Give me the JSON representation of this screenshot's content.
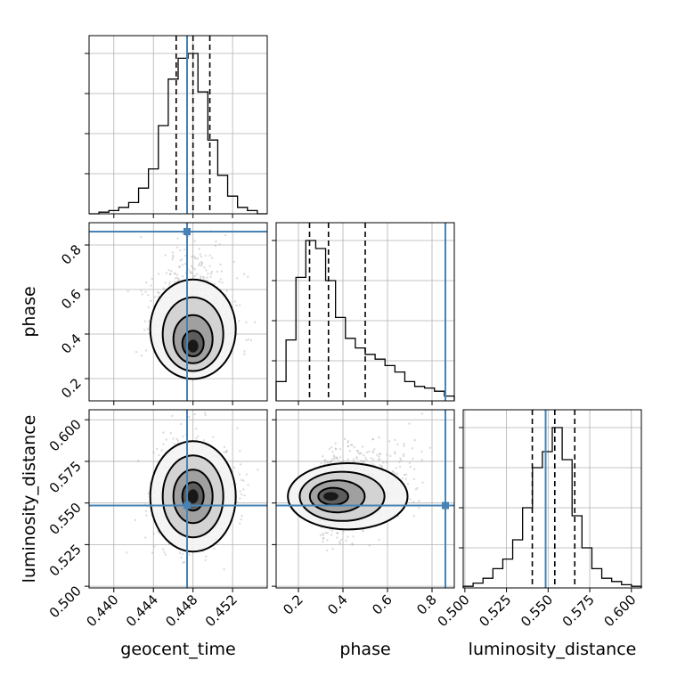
{
  "chart_data": {
    "type": "corner",
    "parameters": [
      "geocent_time",
      "phase",
      "luminosity_distance"
    ],
    "truths": {
      "geocent_time": 0.4474,
      "phase": 0.86,
      "luminosity_distance": 0.5485
    },
    "quantiles": {
      "geocent_time": [
        0.4463,
        0.448,
        0.4497
      ],
      "phase": [
        0.25,
        0.335,
        0.5
      ],
      "luminosity_distance": [
        0.5405,
        0.554,
        0.566
      ]
    },
    "ranges": {
      "geocent_time": [
        0.4375,
        0.4555
      ],
      "phase": [
        0.1,
        0.9
      ],
      "luminosity_distance": [
        0.499,
        0.606
      ]
    },
    "ticks": {
      "geocent_time": [
        "0.440",
        "0.444",
        "0.448",
        "0.452"
      ],
      "phase": [
        "0.2",
        "0.4",
        "0.6",
        "0.8"
      ],
      "luminosity_distance": [
        "0.500",
        "0.525",
        "0.550",
        "0.575",
        "0.600"
      ]
    },
    "histograms": {
      "geocent_time": [
        0,
        0.01,
        0.02,
        0.04,
        0.07,
        0.16,
        0.28,
        0.55,
        0.84,
        0.97,
        1.0,
        0.76,
        0.46,
        0.24,
        0.11,
        0.04,
        0.02,
        0.0
      ],
      "phase": [
        0.12,
        0.38,
        0.77,
        1.0,
        0.95,
        0.75,
        0.52,
        0.39,
        0.33,
        0.29,
        0.26,
        0.22,
        0.18,
        0.12,
        0.09,
        0.08,
        0.06,
        0.03
      ],
      "luminosity_distance": [
        0.01,
        0.03,
        0.06,
        0.12,
        0.18,
        0.3,
        0.5,
        0.75,
        0.85,
        1.0,
        0.8,
        0.45,
        0.25,
        0.12,
        0.06,
        0.04,
        0.02,
        0.01
      ]
    },
    "grid": true
  },
  "colors": {
    "truth": "#4682b4",
    "contour": "#000000",
    "samples": "#9a9a9a",
    "grid": "#b0b0b0"
  }
}
